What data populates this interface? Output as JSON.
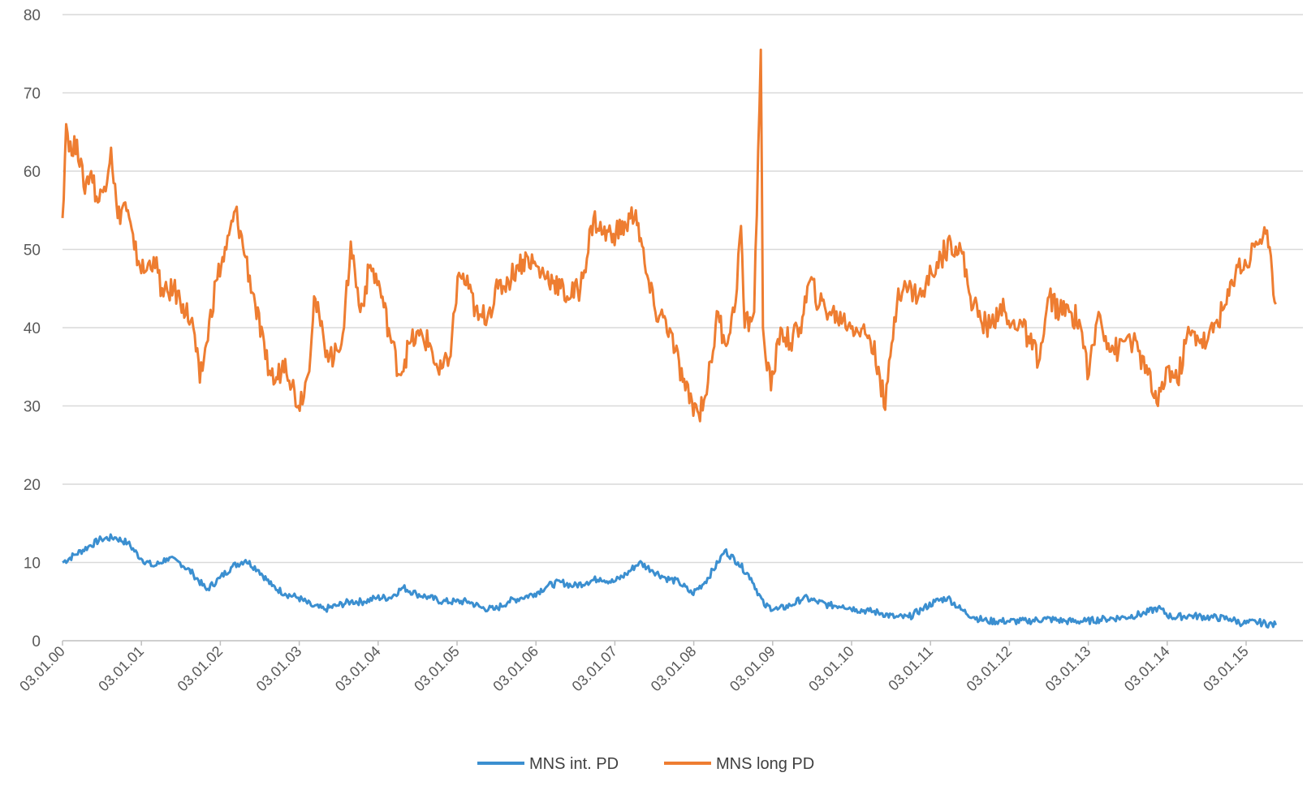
{
  "chart_data": {
    "type": "line",
    "title": "",
    "xlabel": "",
    "ylabel": "",
    "ylim": [
      0,
      80
    ],
    "yticks": [
      0,
      10,
      20,
      30,
      40,
      50,
      60,
      70,
      80
    ],
    "xlim": [
      "2000-01-03",
      "2015-06-01"
    ],
    "xtick_labels": [
      "03.01.00",
      "03.01.01",
      "03.01.02",
      "03.01.03",
      "03.01.04",
      "03.01.05",
      "03.01.06",
      "03.01.07",
      "03.01.08",
      "03.01.09",
      "03.01.10",
      "03.01.11",
      "03.01.12",
      "03.01.13",
      "03.01.14",
      "03.01.15"
    ],
    "grid": "horizontal",
    "legend_position": "bottom",
    "series": [
      {
        "name": "MNS int. PD",
        "color": "#3b8fd0",
        "points": [
          [
            "2000-01-03",
            10.0
          ],
          [
            "2000-03-01",
            11.0
          ],
          [
            "2000-05-01",
            12.0
          ],
          [
            "2000-07-01",
            13.0
          ],
          [
            "2000-09-01",
            13.2
          ],
          [
            "2000-11-01",
            12.5
          ],
          [
            "2001-01-01",
            10.5
          ],
          [
            "2001-03-01",
            9.5
          ],
          [
            "2001-05-01",
            10.5
          ],
          [
            "2001-07-01",
            10.0
          ],
          [
            "2001-09-01",
            8.5
          ],
          [
            "2001-11-01",
            6.5
          ],
          [
            "2002-01-01",
            8.0
          ],
          [
            "2002-03-01",
            9.5
          ],
          [
            "2002-05-01",
            10.3
          ],
          [
            "2002-07-01",
            9.0
          ],
          [
            "2002-09-01",
            7.0
          ],
          [
            "2002-11-01",
            6.0
          ],
          [
            "2003-01-01",
            5.5
          ],
          [
            "2003-03-01",
            4.5
          ],
          [
            "2003-05-01",
            4.0
          ],
          [
            "2003-07-01",
            4.5
          ],
          [
            "2003-09-01",
            5.0
          ],
          [
            "2003-11-01",
            5.0
          ],
          [
            "2004-01-01",
            5.5
          ],
          [
            "2004-03-01",
            5.5
          ],
          [
            "2004-05-01",
            6.8
          ],
          [
            "2004-07-01",
            6.0
          ],
          [
            "2004-09-01",
            5.5
          ],
          [
            "2004-11-01",
            5.0
          ],
          [
            "2005-01-01",
            5.0
          ],
          [
            "2005-03-01",
            5.0
          ],
          [
            "2005-05-01",
            4.2
          ],
          [
            "2005-07-01",
            4.0
          ],
          [
            "2005-09-01",
            5.0
          ],
          [
            "2005-11-01",
            5.5
          ],
          [
            "2006-01-01",
            6.0
          ],
          [
            "2006-03-01",
            7.0
          ],
          [
            "2006-05-01",
            7.5
          ],
          [
            "2006-07-01",
            7.0
          ],
          [
            "2006-09-01",
            7.5
          ],
          [
            "2006-11-01",
            8.0
          ],
          [
            "2007-01-01",
            7.5
          ],
          [
            "2007-03-01",
            8.5
          ],
          [
            "2007-05-01",
            10.0
          ],
          [
            "2007-07-01",
            9.0
          ],
          [
            "2007-09-01",
            8.0
          ],
          [
            "2007-11-01",
            7.5
          ],
          [
            "2008-01-01",
            6.0
          ],
          [
            "2008-03-01",
            7.5
          ],
          [
            "2008-05-01",
            10.0
          ],
          [
            "2008-06-01",
            11.5
          ],
          [
            "2008-08-01",
            10.0
          ],
          [
            "2008-10-01",
            8.0
          ],
          [
            "2008-12-01",
            4.5
          ],
          [
            "2009-02-01",
            4.0
          ],
          [
            "2009-04-01",
            4.5
          ],
          [
            "2009-06-01",
            5.5
          ],
          [
            "2009-08-01",
            5.0
          ],
          [
            "2009-10-01",
            4.5
          ],
          [
            "2009-12-01",
            4.5
          ],
          [
            "2010-02-01",
            4.0
          ],
          [
            "2010-04-01",
            3.8
          ],
          [
            "2010-06-01",
            3.5
          ],
          [
            "2010-08-01",
            3.0
          ],
          [
            "2010-10-01",
            3.0
          ],
          [
            "2010-12-01",
            4.0
          ],
          [
            "2011-02-01",
            5.0
          ],
          [
            "2011-04-01",
            5.5
          ],
          [
            "2011-06-01",
            4.0
          ],
          [
            "2011-08-01",
            3.0
          ],
          [
            "2011-10-01",
            2.5
          ],
          [
            "2012-01-01",
            2.5
          ],
          [
            "2012-04-01",
            2.5
          ],
          [
            "2012-07-01",
            2.8
          ],
          [
            "2012-10-01",
            2.5
          ],
          [
            "2013-01-01",
            2.5
          ],
          [
            "2013-04-01",
            2.8
          ],
          [
            "2013-07-01",
            3.0
          ],
          [
            "2013-10-01",
            3.5
          ],
          [
            "2013-12-01",
            4.2
          ],
          [
            "2014-02-01",
            3.0
          ],
          [
            "2014-05-01",
            3.2
          ],
          [
            "2014-08-01",
            3.0
          ],
          [
            "2014-11-01",
            2.8
          ],
          [
            "2015-01-01",
            2.2
          ],
          [
            "2015-03-01",
            2.4
          ],
          [
            "2015-06-01",
            2.0
          ]
        ]
      },
      {
        "name": "MNS long PD",
        "color": "#ee7d31",
        "points": [
          [
            "2000-01-03",
            54
          ],
          [
            "2000-01-20",
            66
          ],
          [
            "2000-02-15",
            62
          ],
          [
            "2000-03-10",
            64
          ],
          [
            "2000-04-10",
            58
          ],
          [
            "2000-05-15",
            60
          ],
          [
            "2000-06-15",
            56
          ],
          [
            "2000-07-15",
            58
          ],
          [
            "2000-08-15",
            63
          ],
          [
            "2000-09-15",
            54
          ],
          [
            "2000-10-20",
            56
          ],
          [
            "2000-12-01",
            50
          ],
          [
            "2001-01-15",
            47
          ],
          [
            "2001-03-01",
            49
          ],
          [
            "2001-04-15",
            44
          ],
          [
            "2001-06-01",
            45
          ],
          [
            "2001-07-15",
            43
          ],
          [
            "2001-09-01",
            40
          ],
          [
            "2001-10-01",
            33
          ],
          [
            "2001-11-01",
            38
          ],
          [
            "2001-12-15",
            46
          ],
          [
            "2002-02-01",
            50
          ],
          [
            "2002-03-15",
            55
          ],
          [
            "2002-05-01",
            49
          ],
          [
            "2002-06-15",
            43
          ],
          [
            "2002-08-01",
            36
          ],
          [
            "2002-09-15",
            33
          ],
          [
            "2002-11-01",
            36
          ],
          [
            "2003-01-01",
            30
          ],
          [
            "2003-02-15",
            34
          ],
          [
            "2003-03-15",
            44
          ],
          [
            "2003-05-01",
            38
          ],
          [
            "2003-06-15",
            36
          ],
          [
            "2003-08-01",
            40
          ],
          [
            "2003-09-01",
            51
          ],
          [
            "2003-10-15",
            42
          ],
          [
            "2003-12-01",
            48
          ],
          [
            "2004-01-15",
            45
          ],
          [
            "2004-03-01",
            39
          ],
          [
            "2004-04-15",
            34
          ],
          [
            "2004-06-01",
            38
          ],
          [
            "2004-07-15",
            39
          ],
          [
            "2004-09-01",
            38
          ],
          [
            "2004-10-15",
            34
          ],
          [
            "2004-12-01",
            36
          ],
          [
            "2005-01-15",
            47
          ],
          [
            "2005-03-01",
            45
          ],
          [
            "2005-04-15",
            41
          ],
          [
            "2005-06-01",
            42
          ],
          [
            "2005-07-15",
            45
          ],
          [
            "2005-09-01",
            46
          ],
          [
            "2005-10-15",
            48
          ],
          [
            "2005-12-01",
            49
          ],
          [
            "2006-02-01",
            47
          ],
          [
            "2006-04-01",
            46
          ],
          [
            "2006-06-01",
            44
          ],
          [
            "2006-08-01",
            45
          ],
          [
            "2006-10-01",
            54
          ],
          [
            "2006-11-15",
            52
          ],
          [
            "2007-01-01",
            52
          ],
          [
            "2007-03-01",
            53
          ],
          [
            "2007-04-15",
            55
          ],
          [
            "2007-06-01",
            47
          ],
          [
            "2007-07-15",
            42
          ],
          [
            "2007-09-01",
            41
          ],
          [
            "2007-10-15",
            37
          ],
          [
            "2007-12-01",
            32
          ],
          [
            "2008-02-01",
            29
          ],
          [
            "2008-03-15",
            33
          ],
          [
            "2008-05-01",
            42
          ],
          [
            "2008-06-01",
            38
          ],
          [
            "2008-07-15",
            42
          ],
          [
            "2008-08-15",
            53
          ],
          [
            "2008-09-01",
            40
          ],
          [
            "2008-10-15",
            42
          ],
          [
            "2008-11-15",
            75.5
          ],
          [
            "2008-11-25",
            40
          ],
          [
            "2009-01-01",
            32
          ],
          [
            "2009-02-15",
            40
          ],
          [
            "2009-04-01",
            38
          ],
          [
            "2009-05-15",
            40
          ],
          [
            "2009-07-01",
            46
          ],
          [
            "2009-08-15",
            43
          ],
          [
            "2009-10-01",
            42
          ],
          [
            "2009-12-01",
            41
          ],
          [
            "2010-02-01",
            40
          ],
          [
            "2010-04-01",
            39
          ],
          [
            "2010-05-15",
            35
          ],
          [
            "2010-06-15",
            29.5
          ],
          [
            "2010-07-15",
            38
          ],
          [
            "2010-08-15",
            45
          ],
          [
            "2010-10-01",
            45
          ],
          [
            "2010-12-01",
            44
          ],
          [
            "2011-01-15",
            47
          ],
          [
            "2011-03-01",
            49
          ],
          [
            "2011-04-15",
            51
          ],
          [
            "2011-06-01",
            50
          ],
          [
            "2011-07-15",
            44
          ],
          [
            "2011-09-01",
            41
          ],
          [
            "2011-10-15",
            40
          ],
          [
            "2011-12-01",
            43
          ],
          [
            "2012-01-15",
            40
          ],
          [
            "2012-03-01",
            41
          ],
          [
            "2012-04-15",
            38
          ],
          [
            "2012-06-01",
            36
          ],
          [
            "2012-07-15",
            44
          ],
          [
            "2012-09-01",
            42
          ],
          [
            "2012-10-15",
            42
          ],
          [
            "2012-12-01",
            41
          ],
          [
            "2013-01-15",
            34
          ],
          [
            "2013-03-01",
            42
          ],
          [
            "2013-04-15",
            38
          ],
          [
            "2013-06-01",
            37
          ],
          [
            "2013-07-15",
            39
          ],
          [
            "2013-09-01",
            37
          ],
          [
            "2013-10-15",
            34
          ],
          [
            "2013-12-01",
            30
          ],
          [
            "2014-01-15",
            35
          ],
          [
            "2014-03-01",
            33
          ],
          [
            "2014-04-15",
            39
          ],
          [
            "2014-06-01",
            39
          ],
          [
            "2014-07-15",
            38
          ],
          [
            "2014-09-01",
            41
          ],
          [
            "2014-10-15",
            43
          ],
          [
            "2014-12-01",
            48
          ],
          [
            "2015-01-15",
            48
          ],
          [
            "2015-03-01",
            51
          ],
          [
            "2015-04-15",
            52
          ],
          [
            "2015-05-15",
            47
          ],
          [
            "2015-06-01",
            43
          ]
        ]
      }
    ]
  }
}
